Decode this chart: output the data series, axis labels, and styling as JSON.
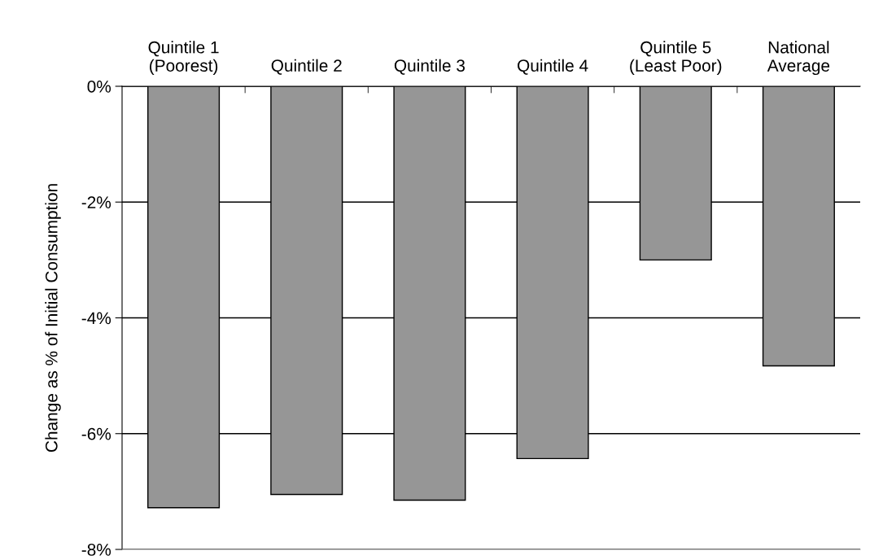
{
  "chart_data": {
    "type": "bar",
    "ylabel": "Change as % of Initial Consumption",
    "categories": [
      "Quintile 1\n(Poorest)",
      "Quintile 2",
      "Quintile 3",
      "Quintile 4",
      "Quintile 5\n(Least Poor)",
      "National\nAverage"
    ],
    "values": [
      -7.28,
      -7.05,
      -7.15,
      -6.43,
      -3.0,
      -4.83
    ],
    "color": "#969696",
    "ylim": [
      -8,
      0
    ],
    "yticks": [
      {
        "value": -8,
        "label": "-8%"
      },
      {
        "value": -6,
        "label": "-6%"
      },
      {
        "value": -4,
        "label": "-4%"
      },
      {
        "value": -2,
        "label": "-2%"
      },
      {
        "value": 0,
        "label": "0%"
      }
    ],
    "grid": "y"
  }
}
